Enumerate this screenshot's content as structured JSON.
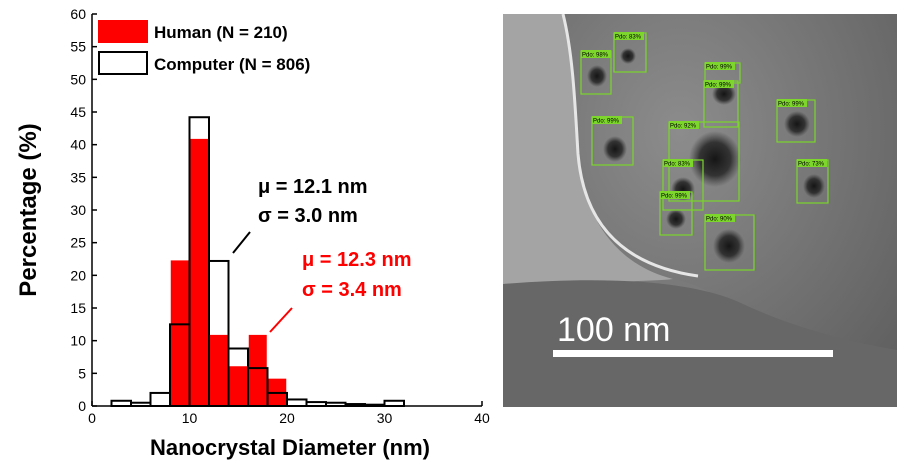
{
  "chart_data": {
    "type": "bar",
    "xlabel": "Nanocrystal Diameter (nm)",
    "ylabel": "Percentage (%)",
    "xlim": [
      0,
      40
    ],
    "ylim": [
      0,
      60
    ],
    "xticks": [
      0,
      10,
      20,
      30,
      40
    ],
    "yticks": [
      0,
      5,
      10,
      15,
      20,
      25,
      30,
      35,
      40,
      45,
      50,
      55,
      60
    ],
    "bin_width": 2,
    "legend_position": "top-left",
    "series": [
      {
        "name": "Human (N = 210)",
        "color": "#ff0000",
        "bin_starts": [
          8,
          10,
          12,
          14,
          16,
          18
        ],
        "values": [
          22.4,
          41.0,
          11.0,
          6.2,
          11.0,
          4.3
        ]
      },
      {
        "name": "Computer (N = 806)",
        "color": "#000000",
        "style": "outline",
        "bin_starts": [
          2,
          4,
          6,
          8,
          10,
          12,
          14,
          16,
          18,
          20,
          22,
          24,
          26,
          28,
          30
        ],
        "values": [
          0.8,
          0.5,
          2.0,
          12.5,
          44.2,
          22.2,
          8.8,
          5.8,
          2.0,
          1.0,
          0.6,
          0.5,
          0.3,
          0.2,
          0.8
        ]
      }
    ],
    "annotations": [
      {
        "line1": "μ = 12.1 nm",
        "line2": "σ = 3.0 nm",
        "color": "#000000"
      },
      {
        "line1": "μ = 12.3 nm",
        "line2": "σ = 3.4 nm",
        "color": "#ff0000"
      }
    ]
  },
  "image_panel": {
    "scale_bar_label": "100 nm",
    "detections": [
      "Pdo: 98%",
      "Pdo: 83%",
      "Pdo: 99%",
      "Pdo: 99%",
      "Pdo: 99%",
      "Pdo: 92%",
      "Pdo: 99%",
      "Pdo: 83%",
      "Pdo: 99%",
      "Pdo: 73%",
      "Pdo: 90%"
    ]
  }
}
